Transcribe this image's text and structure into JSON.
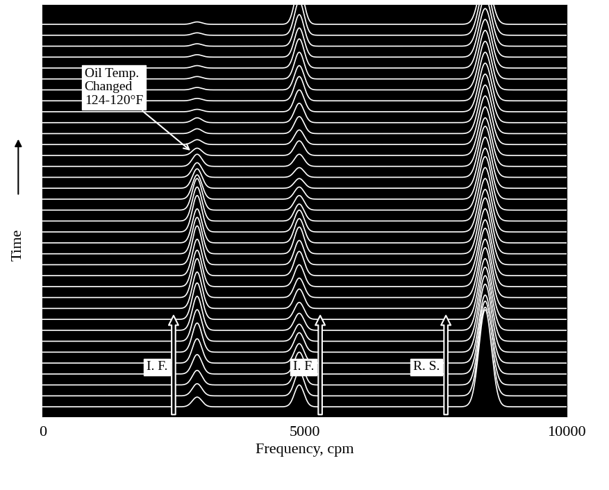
{
  "chart_data": {
    "type": "waterfall",
    "xlabel": "Frequency, cpm",
    "ylabel": "Time",
    "xlim": [
      0,
      10000
    ],
    "xticks": [
      0,
      5000,
      10000
    ],
    "tick_labels": "x",
    "color": "white",
    "peaks": [
      2950,
      4900,
      8450
    ],
    "series": [
      {
        "color": "white",
        "values": [
          0.4,
          0.5,
          0.6,
          0.8,
          1.0,
          1.2,
          1.3,
          1.4,
          1.5,
          1.5,
          1.6,
          1.5,
          1.5,
          1.6,
          1.5,
          1.4,
          1.5,
          1.4,
          1.3,
          1.0,
          0.8,
          0.6,
          0.5,
          0.3,
          0.2,
          0.2,
          0.2,
          0.1,
          0.1,
          0.1,
          0.1,
          0.1,
          0.1,
          0.1,
          0.1,
          0.1
        ]
      },
      {
        "color": "white",
        "values": [
          0.9,
          1.0,
          1.0,
          0.9,
          0.8,
          0.8,
          0.7,
          0.7,
          0.7,
          0.8,
          0.8,
          0.9,
          1.0,
          1.0,
          1.1,
          1.0,
          0.9,
          0.7,
          0.6,
          0.5,
          0.4,
          0.4,
          0.5,
          0.6,
          0.6,
          0.7,
          0.8,
          0.9,
          1.0,
          1.0,
          1.1,
          1.2,
          1.2,
          1.3,
          1.4,
          1.5
        ]
      },
      {
        "color": "white",
        "values": [
          4.0,
          3.5,
          3.2,
          3.0,
          2.8,
          2.8,
          2.7,
          2.6,
          2.5,
          2.5,
          2.4,
          2.4,
          2.3,
          2.3,
          2.3,
          2.2,
          2.2,
          2.2,
          2.2,
          2.1,
          2.1,
          2.1,
          2.0,
          2.0,
          2.0,
          2.0,
          2.0,
          2.0,
          2.0,
          2.0,
          2.0,
          2.0,
          2.0,
          2.0,
          2.0,
          2.0
        ]
      }
    ],
    "annotations": [
      "Oil Temp.\nChanged\n124-120°F",
      "I. F.",
      "I. F.",
      "R. S."
    ]
  }
}
